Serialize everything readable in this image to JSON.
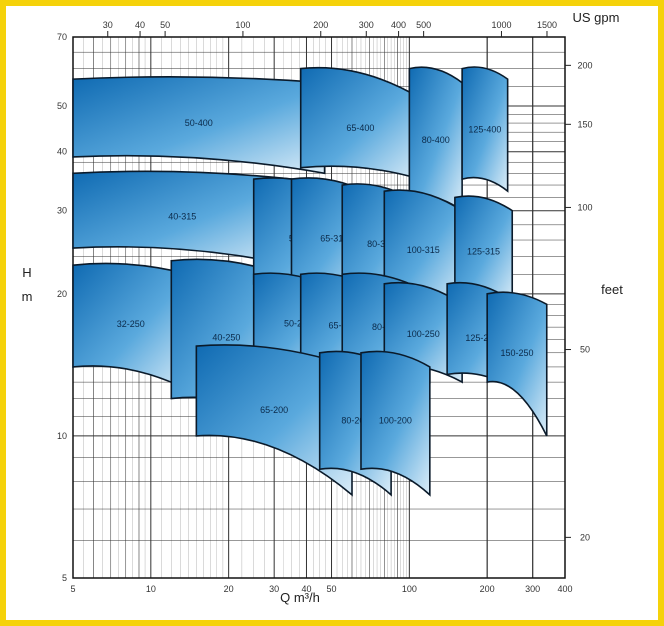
{
  "chart_data": {
    "type": "area",
    "x_axis": {
      "label": "Q m³/h",
      "scale": "log",
      "range": [
        5,
        400
      ],
      "tick_labels": [
        "5",
        "10",
        "20",
        "30",
        "40",
        "50",
        "100",
        "200",
        "300",
        "400"
      ],
      "tick_values": [
        5,
        10,
        20,
        30,
        40,
        50,
        100,
        200,
        300,
        400
      ]
    },
    "x2_axis": {
      "label": "US gpm",
      "scale": "log",
      "tick_labels": [
        "30",
        "40",
        "50",
        "100",
        "200",
        "300",
        "400",
        "500",
        "1000",
        "1500"
      ],
      "tick_values": [
        30,
        40,
        50,
        100,
        200,
        300,
        400,
        500,
        1000,
        1500
      ]
    },
    "y_axis": {
      "label_top": "H",
      "label_bottom": "m",
      "scale": "log",
      "range": [
        5,
        70
      ],
      "tick_labels": [
        "5",
        "10",
        "20",
        "30",
        "40",
        "50",
        "70"
      ],
      "tick_values": [
        5,
        10,
        20,
        30,
        40,
        50,
        70
      ]
    },
    "y2_axis": {
      "label": "feet",
      "scale": "log",
      "tick_labels": [
        "20",
        "50",
        "100",
        "150",
        "200"
      ],
      "tick_values": [
        20,
        50,
        100,
        150,
        200
      ]
    },
    "grid": true,
    "series": [
      {
        "name": "50-400",
        "q": [
          5,
          47
        ],
        "h": [
          [
            57,
            56
          ],
          [
            39,
            36
          ]
        ]
      },
      {
        "name": "40-315",
        "q": [
          5,
          35
        ],
        "h": [
          [
            36,
            35
          ],
          [
            25,
            23
          ]
        ]
      },
      {
        "name": "32-250",
        "q": [
          5,
          14
        ],
        "h": [
          [
            23,
            22
          ],
          [
            14,
            12.5
          ]
        ]
      },
      {
        "name": "40-250",
        "q": [
          12,
          32
        ],
        "h": [
          [
            23.5,
            22
          ],
          [
            12,
            11
          ]
        ]
      },
      {
        "name": "65-400",
        "q": [
          38,
          110
        ],
        "h": [
          [
            60,
            52
          ],
          [
            37,
            35
          ]
        ]
      },
      {
        "name": "80-400",
        "q": [
          100,
          160
        ],
        "h": [
          [
            60,
            56
          ],
          [
            32,
            30
          ]
        ]
      },
      {
        "name": "125-400",
        "q": [
          160,
          240
        ],
        "h": [
          [
            60,
            57
          ],
          [
            35,
            33
          ]
        ]
      },
      {
        "name": "50-315",
        "q": [
          25,
          60
        ],
        "h": [
          [
            35,
            32
          ],
          [
            21,
            20
          ]
        ]
      },
      {
        "name": "65-315",
        "q": [
          35,
          75
        ],
        "h": [
          [
            35,
            32
          ],
          [
            21,
            20
          ]
        ]
      },
      {
        "name": "80-315",
        "q": [
          55,
          110
        ],
        "h": [
          [
            34,
            31
          ],
          [
            21,
            19
          ]
        ]
      },
      {
        "name": "100-315",
        "q": [
          80,
          160
        ],
        "h": [
          [
            33,
            30
          ],
          [
            20,
            19
          ]
        ]
      },
      {
        "name": "125-315",
        "q": [
          150,
          250
        ],
        "h": [
          [
            32,
            30
          ],
          [
            20,
            19
          ]
        ]
      },
      {
        "name": "50-250",
        "q": [
          25,
          55
        ],
        "h": [
          [
            22,
            20
          ],
          [
            15,
            13.5
          ]
        ]
      },
      {
        "name": "65-250",
        "q": [
          38,
          80
        ],
        "h": [
          [
            22,
            20
          ],
          [
            14.5,
            13.5
          ]
        ]
      },
      {
        "name": "80-250",
        "q": [
          55,
          120
        ],
        "h": [
          [
            22,
            20
          ],
          [
            14.5,
            13
          ]
        ]
      },
      {
        "name": "100-250",
        "q": [
          80,
          160
        ],
        "h": [
          [
            21,
            19
          ],
          [
            14,
            13
          ]
        ]
      },
      {
        "name": "125-250",
        "q": [
          140,
          260
        ],
        "h": [
          [
            21,
            19
          ],
          [
            13.5,
            12.5
          ]
        ]
      },
      {
        "name": "150-250",
        "q": [
          200,
          340
        ],
        "h": [
          [
            20,
            19
          ],
          [
            13,
            10
          ]
        ]
      },
      {
        "name": "65-200",
        "q": [
          15,
          60
        ],
        "h": [
          [
            15.5,
            14
          ],
          [
            10,
            7.5
          ]
        ]
      },
      {
        "name": "80-200",
        "q": [
          45,
          85
        ],
        "h": [
          [
            15,
            14
          ],
          [
            8.5,
            7.5
          ]
        ]
      },
      {
        "name": "100-200",
        "q": [
          65,
          120
        ],
        "h": [
          [
            15,
            14
          ],
          [
            8.5,
            7.5
          ]
        ]
      }
    ]
  },
  "colors": {
    "frame": "#f5d20a",
    "grid": "#333333",
    "fill_dark": "#1372b8",
    "fill_light": "#cfe6f6",
    "outline": "#0a1a2a"
  }
}
